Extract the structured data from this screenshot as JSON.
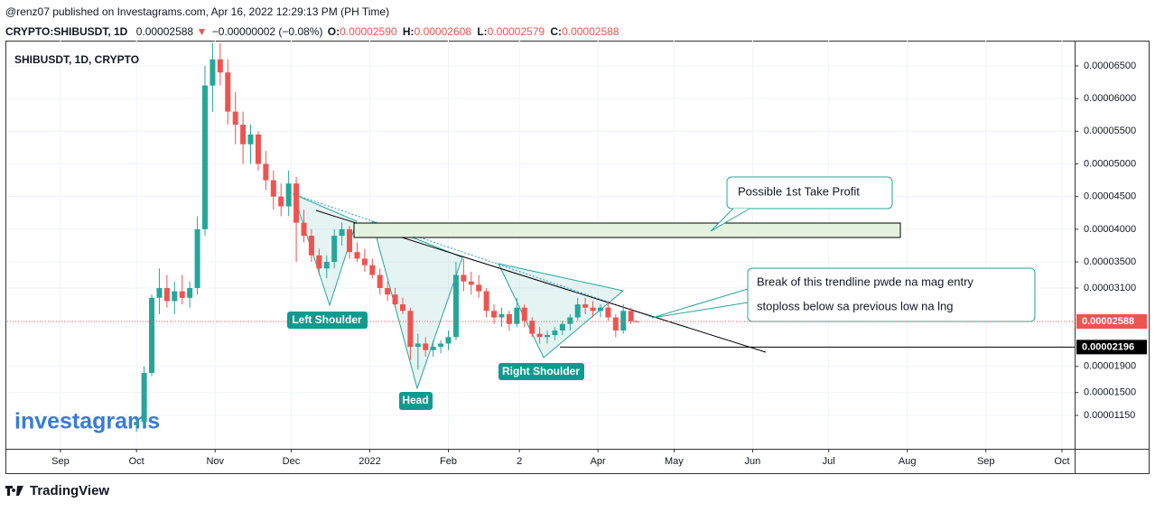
{
  "header": {
    "publisher": "@renz07 published on Investagrams.com, Apr 16, 2022 12:29:13 PM (PH Time)",
    "symbol": "CRYPTO:SHIBUSDT, 1D",
    "last": "0.00002588",
    "arrow": "▼",
    "change": "−0.00000002 (−0.08%)",
    "ohlc": [
      {
        "key": "O:",
        "value": "0.00002590"
      },
      {
        "key": "H:",
        "value": "0.00002608"
      },
      {
        "key": "L:",
        "value": "0.00002579"
      },
      {
        "key": "C:",
        "value": "0.00002588"
      }
    ]
  },
  "chart_data": {
    "type": "candlestick",
    "legend": "SHIBUSDT, 1D, CRYPTO",
    "up_color": "#26a69a",
    "down_color": "#ef5350",
    "grid": true,
    "xlim": [
      -21,
      400
    ],
    "xticks": [
      {
        "value": 0,
        "label": "Sep"
      },
      {
        "value": 30,
        "label": "Oct"
      },
      {
        "value": 61,
        "label": "Nov"
      },
      {
        "value": 91,
        "label": "Dec"
      },
      {
        "value": 122,
        "label": "2022"
      },
      {
        "value": 153,
        "label": "Feb"
      },
      {
        "value": 181,
        "label": "2"
      },
      {
        "value": 212,
        "label": "Apr"
      },
      {
        "value": 242,
        "label": "May"
      },
      {
        "value": 273,
        "label": "Jun"
      },
      {
        "value": 303,
        "label": "Jul"
      },
      {
        "value": 334,
        "label": "Aug"
      },
      {
        "value": 365,
        "label": "Sep"
      },
      {
        "value": 395,
        "label": "Oct"
      }
    ],
    "ylim": [
      6.39e-06,
      6.887e-05
    ],
    "yticks": [
      {
        "value": 6.5e-05,
        "label": "0.00006500"
      },
      {
        "value": 6e-05,
        "label": "0.00006000"
      },
      {
        "value": 5.5e-05,
        "label": "0.00005500"
      },
      {
        "value": 5e-05,
        "label": "0.00005000"
      },
      {
        "value": 4.5e-05,
        "label": "0.00004500"
      },
      {
        "value": 4e-05,
        "label": "0.00004000"
      },
      {
        "value": 3.5e-05,
        "label": "0.00003500"
      },
      {
        "value": 3.1e-05,
        "label": "0.00003100"
      },
      {
        "value": 1.9e-05,
        "label": "0.00001900"
      },
      {
        "value": 1.5e-05,
        "label": "0.00001500"
      },
      {
        "value": 1.15e-05,
        "label": "0.00001150"
      }
    ],
    "price_labels": [
      {
        "value": 2.588e-05,
        "label": "0.00002588",
        "color": "#ef5350"
      },
      {
        "value": 2.196e-05,
        "label": "0.00002196",
        "color": "#000000"
      }
    ],
    "candles": {
      "x": [
        30,
        33,
        36,
        39,
        42,
        45,
        48,
        51,
        54,
        57,
        60,
        63,
        66,
        69,
        72,
        75,
        78,
        81,
        84,
        87,
        90,
        93,
        96,
        99,
        102,
        105,
        108,
        111,
        114,
        117,
        120,
        123,
        126,
        129,
        132,
        135,
        138,
        141,
        144,
        147,
        150,
        153,
        156,
        159,
        162,
        165,
        168,
        171,
        174,
        177,
        180,
        183,
        186,
        189,
        192,
        195,
        198,
        201,
        204,
        207,
        210,
        213,
        216,
        219,
        222,
        225,
        227
      ],
      "open": [
        1e-05,
        1.05e-05,
        1.8e-05,
        2.95e-05,
        3.1e-05,
        2.9e-05,
        3.05e-05,
        2.95e-05,
        3.1e-05,
        4e-05,
        6.2e-05,
        6.6e-05,
        6.4e-05,
        5.8e-05,
        5.6e-05,
        5.3e-05,
        5.45e-05,
        5e-05,
        4.75e-05,
        4.5e-05,
        4.35e-05,
        4.7e-05,
        4.1e-05,
        3.9e-05,
        3.6e-05,
        3.4e-05,
        3.5e-05,
        3.9e-05,
        4e-05,
        3.65e-05,
        3.55e-05,
        3.45e-05,
        3.3e-05,
        3.1e-05,
        3e-05,
        2.85e-05,
        2.75e-05,
        2.2e-05,
        2.25e-05,
        2.15e-05,
        2.2e-05,
        2.25e-05,
        2.35e-05,
        3.3e-05,
        3.2e-05,
        3.15e-05,
        3.05e-05,
        2.75e-05,
        2.65e-05,
        2.7e-05,
        2.55e-05,
        2.8e-05,
        2.6e-05,
        2.4e-05,
        2.35e-05,
        2.38e-05,
        2.45e-05,
        2.55e-05,
        2.65e-05,
        2.85e-05,
        2.8e-05,
        2.75e-05,
        2.8e-05,
        2.65e-05,
        2.45e-05,
        2.75e-05,
        2.59e-05
      ],
      "high": [
        1.1e-05,
        1.9e-05,
        3e-05,
        3.4e-05,
        3.3e-05,
        3.2e-05,
        3.3e-05,
        3.2e-05,
        4.2e-05,
        6.5e-05,
        6.85e-05,
        6.85e-05,
        6.6e-05,
        6.1e-05,
        5.8e-05,
        5.6e-05,
        5.5e-05,
        5.2e-05,
        4.9e-05,
        4.7e-05,
        4.9e-05,
        4.8e-05,
        4.3e-05,
        4e-05,
        3.7e-05,
        3.6e-05,
        4e-05,
        4.1e-05,
        4.05e-05,
        3.8e-05,
        3.7e-05,
        3.55e-05,
        3.4e-05,
        3.2e-05,
        3.1e-05,
        2.95e-05,
        2.8e-05,
        2.4e-05,
        2.35e-05,
        2.3e-05,
        2.3e-05,
        2.45e-05,
        3.5e-05,
        3.55e-05,
        3.35e-05,
        3.3e-05,
        3.1e-05,
        2.85e-05,
        2.8e-05,
        2.75e-05,
        2.95e-05,
        2.85e-05,
        2.65e-05,
        2.5e-05,
        2.45e-05,
        2.5e-05,
        2.6e-05,
        2.7e-05,
        2.95e-05,
        2.95e-05,
        2.9e-05,
        2.85e-05,
        2.9e-05,
        2.7e-05,
        2.85e-05,
        2.8e-05,
        2.608e-05
      ],
      "low": [
        9e-06,
        1e-05,
        1.75e-05,
        2.7e-05,
        2.8e-05,
        2.7e-05,
        2.85e-05,
        2.8e-05,
        3e-05,
        3.9e-05,
        5.8e-05,
        6.2e-05,
        5.6e-05,
        5.3e-05,
        5e-05,
        5e-05,
        4.9e-05,
        4.6e-05,
        4.3e-05,
        4.2e-05,
        4.2e-05,
        3.5e-05,
        3.8e-05,
        3.5e-05,
        3.3e-05,
        3.25e-05,
        3.4e-05,
        3.75e-05,
        3.55e-05,
        3.5e-05,
        3.35e-05,
        3.25e-05,
        3e-05,
        2.9e-05,
        2.8e-05,
        2.7e-05,
        2e-05,
        1.85e-05,
        2.05e-05,
        2.05e-05,
        2.1e-05,
        2.15e-05,
        2.3e-05,
        3.05e-05,
        3e-05,
        2.95e-05,
        2.65e-05,
        2.55e-05,
        2.5e-05,
        2.45e-05,
        2.5e-05,
        2.5e-05,
        2.35e-05,
        2.25e-05,
        2.25e-05,
        2.3e-05,
        2.38e-05,
        2.45e-05,
        2.6e-05,
        2.7e-05,
        2.65e-05,
        2.65e-05,
        2.6e-05,
        2.35e-05,
        2.4e-05,
        2.55e-05,
        2.579e-05
      ],
      "close": [
        1.05e-05,
        1.8e-05,
        2.95e-05,
        3.1e-05,
        2.9e-05,
        3.05e-05,
        2.95e-05,
        3.1e-05,
        4e-05,
        6.2e-05,
        6.6e-05,
        6.4e-05,
        5.8e-05,
        5.6e-05,
        5.3e-05,
        5.45e-05,
        5e-05,
        4.75e-05,
        4.5e-05,
        4.35e-05,
        4.7e-05,
        4.1e-05,
        3.9e-05,
        3.6e-05,
        3.4e-05,
        3.5e-05,
        3.9e-05,
        4e-05,
        3.65e-05,
        3.55e-05,
        3.45e-05,
        3.3e-05,
        3.1e-05,
        3e-05,
        2.85e-05,
        2.75e-05,
        2.2e-05,
        2.25e-05,
        2.15e-05,
        2.2e-05,
        2.25e-05,
        2.35e-05,
        3.3e-05,
        3.2e-05,
        3.15e-05,
        3.05e-05,
        2.75e-05,
        2.65e-05,
        2.7e-05,
        2.55e-05,
        2.8e-05,
        2.6e-05,
        2.4e-05,
        2.35e-05,
        2.38e-05,
        2.45e-05,
        2.55e-05,
        2.65e-05,
        2.85e-05,
        2.8e-05,
        2.75e-05,
        2.8e-05,
        2.65e-05,
        2.45e-05,
        2.75e-05,
        2.59e-05,
        2.588e-05
      ]
    },
    "annotations": {
      "take_profit": "Possible 1st Take Profit",
      "note_line1": "Break of this trendline pwde na mag entry",
      "note_line2": "stoploss below sa previous low na lng",
      "left_shoulder": "Left Shoulder",
      "head": "Head",
      "right_shoulder": "Right Shoulder"
    },
    "watermark": "investagrams"
  },
  "footer": {
    "brand": "TradingView"
  }
}
